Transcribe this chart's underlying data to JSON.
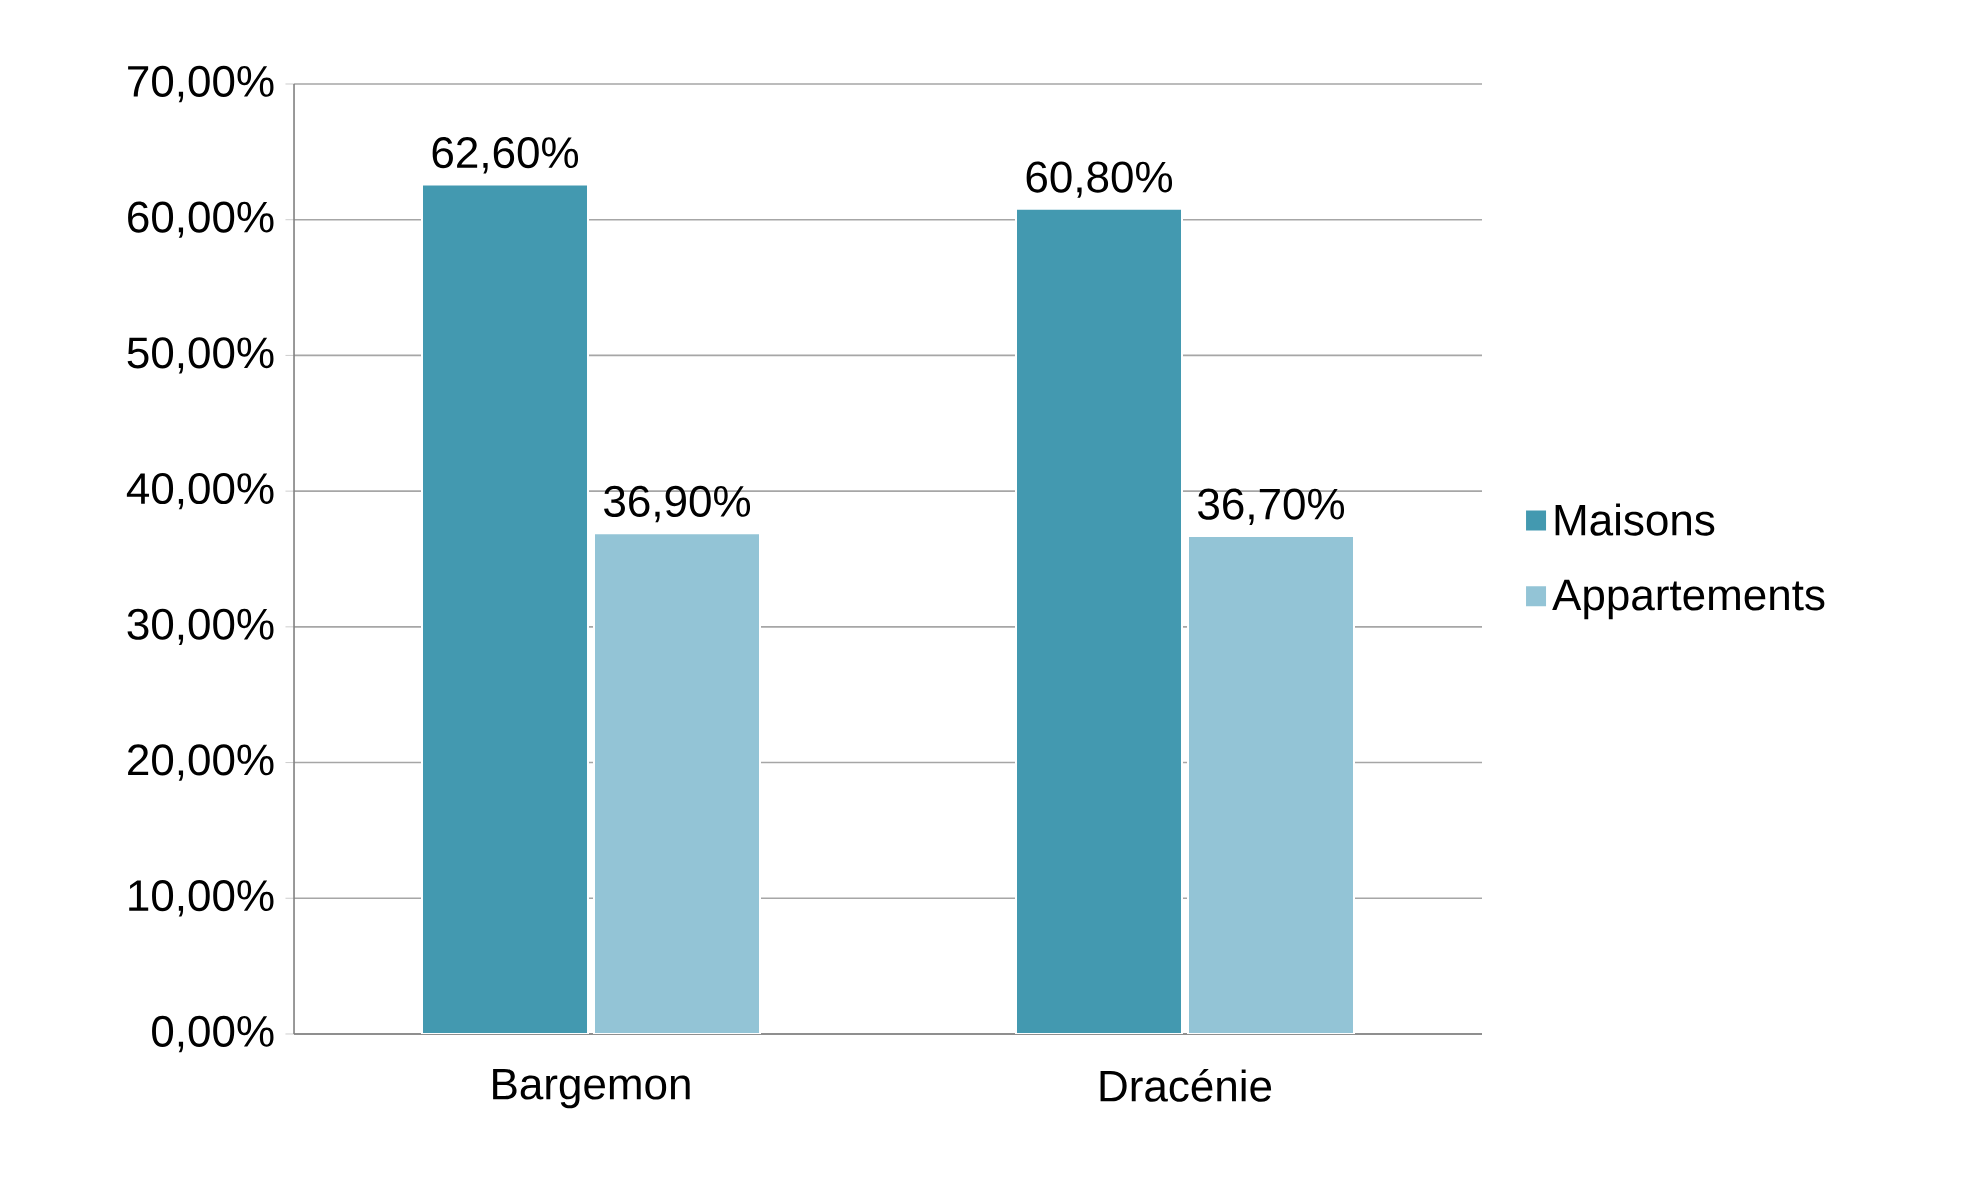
{
  "chart_data": {
    "type": "bar",
    "categories": [
      "Bargemon",
      "Dracénie"
    ],
    "series": [
      {
        "name": "Maisons",
        "color": "#4399b0",
        "values": [
          62.6,
          60.8
        ],
        "value_labels": [
          "62,60%",
          "60,80%"
        ]
      },
      {
        "name": "Appartements",
        "color": "#93c4d6",
        "values": [
          36.9,
          36.7
        ],
        "value_labels": [
          "36,90%",
          "36,70%"
        ]
      }
    ],
    "ylim": [
      0,
      70
    ],
    "yticks": [
      {
        "value": 0,
        "label": "0,00%"
      },
      {
        "value": 10,
        "label": "10,00%"
      },
      {
        "value": 20,
        "label": "20,00%"
      },
      {
        "value": 30,
        "label": "30,00%"
      },
      {
        "value": 40,
        "label": "40,00%"
      },
      {
        "value": 50,
        "label": "50,00%"
      },
      {
        "value": 60,
        "label": "60,00%"
      },
      {
        "value": 70,
        "label": "70,00%"
      }
    ],
    "grid": "y",
    "legend": "right"
  }
}
